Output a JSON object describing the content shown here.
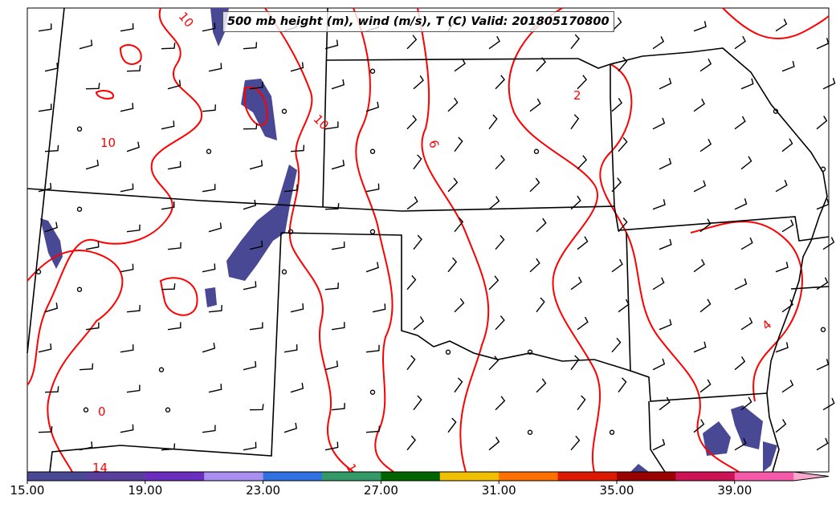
{
  "title": "500 mb height (m), wind (m/s), T (C) Valid: 201805170800",
  "colorbar": {
    "ticks": [
      "15.00",
      "19.00",
      "23.00",
      "27.00",
      "31.00",
      "35.00",
      "39.00"
    ],
    "min": 15,
    "max": 41,
    "step": 2,
    "extend": "max",
    "colors": [
      "#484895",
      "#5a3e9e",
      "#6a2dbd",
      "#a890f0",
      "#3070e0",
      "#339966",
      "#006400",
      "#f0c000",
      "#ff7000",
      "#dd1800",
      "#990000",
      "#cc1155",
      "#f55aa8"
    ],
    "extend_color": "#f8a8cc"
  },
  "contour_labels": [
    "10",
    "10",
    "10",
    "6",
    "2",
    "4",
    "14",
    "1",
    "0"
  ],
  "colors": {
    "contour": "#ff0000",
    "borders": "#000000",
    "wind_barbs": "#000000"
  }
}
